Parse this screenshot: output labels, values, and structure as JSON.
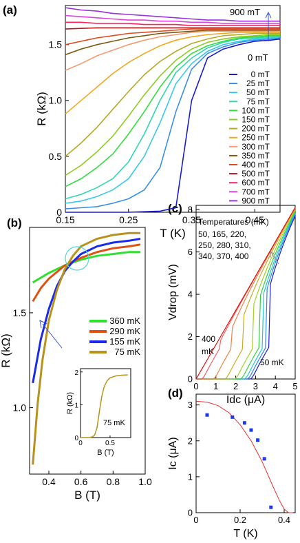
{
  "chart_data": [
    {
      "panel": "(a)",
      "type": "line",
      "xlabel": "T (K)",
      "ylabel": "R (kΩ)",
      "xlim": [
        0.15,
        0.49
      ],
      "ylim": [
        0,
        1.85
      ],
      "xticks": [
        0.15,
        0.25,
        0.35,
        0.45
      ],
      "yticks": [
        0,
        0.5,
        1.0,
        1.5
      ],
      "xtick_labels": [
        "0.15",
        "0.25",
        "0.35",
        "0.45"
      ],
      "ytick_labels": [
        "0",
        "0.5",
        "1.0",
        "1.5"
      ],
      "annotations": {
        "top": "900 mT",
        "bottom": "0 mT"
      },
      "legend_position": "right",
      "x": [
        0.15,
        0.175,
        0.2,
        0.225,
        0.25,
        0.275,
        0.3,
        0.325,
        0.35,
        0.375,
        0.4,
        0.425,
        0.45,
        0.475,
        0.49
      ],
      "series": [
        {
          "name": "0 mT",
          "color": "#1a1ad0",
          "values": [
            0.0,
            0.0,
            0.0,
            0.0,
            0.0,
            0.005,
            0.01,
            0.04,
            1.0,
            1.38,
            1.46,
            1.5,
            1.53,
            1.54,
            1.55
          ]
        },
        {
          "name": "25 mT",
          "color": "#3a8ee8",
          "values": [
            0.03,
            0.04,
            0.05,
            0.08,
            0.12,
            0.2,
            0.4,
            0.9,
            1.28,
            1.42,
            1.48,
            1.52,
            1.54,
            1.55,
            1.56
          ]
        },
        {
          "name": "50 mT",
          "color": "#35c8e8",
          "values": [
            0.08,
            0.1,
            0.14,
            0.2,
            0.3,
            0.5,
            0.8,
            1.15,
            1.33,
            1.44,
            1.5,
            1.53,
            1.55,
            1.56,
            1.57
          ]
        },
        {
          "name": "75 mT",
          "color": "#2fd6b0",
          "values": [
            0.12,
            0.16,
            0.22,
            0.3,
            0.45,
            0.7,
            1.0,
            1.25,
            1.38,
            1.47,
            1.52,
            1.55,
            1.56,
            1.57,
            1.57
          ]
        },
        {
          "name": "100 mT",
          "color": "#30dc40",
          "values": [
            0.23,
            0.3,
            0.4,
            0.52,
            0.7,
            0.9,
            1.12,
            1.3,
            1.42,
            1.49,
            1.53,
            1.56,
            1.57,
            1.58,
            1.58
          ]
        },
        {
          "name": "150 mT",
          "color": "#8ccc20",
          "values": [
            0.33,
            0.42,
            0.54,
            0.68,
            0.86,
            1.05,
            1.22,
            1.36,
            1.46,
            1.52,
            1.55,
            1.57,
            1.58,
            1.59,
            1.59
          ]
        },
        {
          "name": "200 mT",
          "color": "#b8a828",
          "values": [
            0.5,
            0.62,
            0.76,
            0.92,
            1.08,
            1.23,
            1.35,
            1.44,
            1.51,
            1.55,
            1.58,
            1.59,
            1.6,
            1.6,
            1.6
          ]
        },
        {
          "name": "250 mT",
          "color": "#f0a820",
          "values": [
            0.88,
            1.0,
            1.12,
            1.24,
            1.34,
            1.42,
            1.49,
            1.54,
            1.57,
            1.59,
            1.6,
            1.61,
            1.61,
            1.61,
            1.61
          ]
        },
        {
          "name": "300 mT",
          "color": "#f49a70",
          "values": [
            1.27,
            1.33,
            1.4,
            1.45,
            1.5,
            1.54,
            1.57,
            1.59,
            1.61,
            1.62,
            1.62,
            1.62,
            1.62,
            1.62,
            1.62
          ]
        },
        {
          "name": "350 mT",
          "color": "#7a5a10",
          "values": [
            1.41,
            1.46,
            1.5,
            1.53,
            1.56,
            1.58,
            1.6,
            1.61,
            1.62,
            1.63,
            1.63,
            1.63,
            1.63,
            1.63,
            1.63
          ]
        },
        {
          "name": "400 mT",
          "color": "#e04a20",
          "values": [
            1.5,
            1.53,
            1.56,
            1.58,
            1.6,
            1.61,
            1.62,
            1.63,
            1.64,
            1.64,
            1.64,
            1.64,
            1.64,
            1.64,
            1.64
          ]
        },
        {
          "name": "500 mT",
          "color": "#b01818",
          "values": [
            1.64,
            1.645,
            1.65,
            1.65,
            1.65,
            1.65,
            1.65,
            1.65,
            1.65,
            1.65,
            1.65,
            1.65,
            1.65,
            1.65,
            1.65
          ]
        },
        {
          "name": "600 mT",
          "color": "#ff2060",
          "values": [
            1.7,
            1.7,
            1.69,
            1.69,
            1.69,
            1.68,
            1.68,
            1.68,
            1.67,
            1.67,
            1.67,
            1.67,
            1.67,
            1.67,
            1.67
          ]
        },
        {
          "name": "700 mT",
          "color": "#e040e0",
          "values": [
            1.76,
            1.75,
            1.74,
            1.73,
            1.72,
            1.72,
            1.71,
            1.71,
            1.7,
            1.7,
            1.69,
            1.69,
            1.69,
            1.69,
            1.69
          ]
        },
        {
          "name": "900 mT",
          "color": "#9a30e0",
          "values": [
            1.83,
            1.81,
            1.8,
            1.78,
            1.77,
            1.76,
            1.75,
            1.74,
            1.73,
            1.72,
            1.72,
            1.71,
            1.71,
            1.71,
            1.71
          ]
        }
      ]
    },
    {
      "panel": "(b)",
      "type": "line",
      "xlabel": "B (T)",
      "ylabel": "R (kΩ)",
      "xlim": [
        0.28,
        1.0
      ],
      "ylim": [
        0.65,
        1.95
      ],
      "xticks": [
        0.4,
        0.6,
        0.8,
        1.0
      ],
      "yticks": [
        1.0,
        1.5
      ],
      "xtick_labels": [
        "0.4",
        "0.6",
        "0.8",
        "1.0"
      ],
      "ytick_labels": [
        "1.0",
        "1.5"
      ],
      "legend_position": "right",
      "series": [
        {
          "name": "360 mK",
          "color": "#30e030",
          "x": [
            0.3,
            0.4,
            0.5,
            0.6,
            0.7,
            0.8,
            0.9,
            0.97
          ],
          "values": [
            1.66,
            1.71,
            1.75,
            1.78,
            1.8,
            1.81,
            1.82,
            1.82
          ]
        },
        {
          "name": "290 mK",
          "color": "#e05010",
          "x": [
            0.3,
            0.35,
            0.4,
            0.5,
            0.6,
            0.7,
            0.8,
            0.9,
            0.97
          ],
          "values": [
            1.56,
            1.63,
            1.68,
            1.75,
            1.79,
            1.82,
            1.84,
            1.85,
            1.86
          ]
        },
        {
          "name": "155 mK",
          "color": "#1a2ae8",
          "x": [
            0.3,
            0.35,
            0.4,
            0.45,
            0.5,
            0.55,
            0.6,
            0.7,
            0.8,
            0.9,
            0.97
          ],
          "values": [
            1.13,
            1.36,
            1.52,
            1.64,
            1.72,
            1.77,
            1.81,
            1.85,
            1.87,
            1.88,
            1.89
          ]
        },
        {
          "name": "75 mK",
          "color": "#b8921a",
          "x": [
            0.3,
            0.33,
            0.36,
            0.4,
            0.45,
            0.5,
            0.55,
            0.6,
            0.7,
            0.8,
            0.9,
            0.97
          ],
          "values": [
            0.7,
            1.02,
            1.25,
            1.46,
            1.62,
            1.73,
            1.8,
            1.85,
            1.89,
            1.91,
            1.92,
            1.92
          ]
        }
      ],
      "inset": {
        "type": "line",
        "xlabel": "B (T)",
        "ylabel": "R (kΩ)",
        "xlim": [
          0,
          0.85
        ],
        "ylim": [
          0,
          2.1
        ],
        "xticks": [
          0,
          0.5
        ],
        "yticks": [
          0,
          1,
          2
        ],
        "xtick_labels": [
          "0",
          "0.5"
        ],
        "ytick_labels": [
          "0",
          "1",
          "2"
        ],
        "label": "75 mK",
        "series": [
          {
            "name": "75 mK",
            "color": "#b8921a",
            "x": [
              0.0,
              0.1,
              0.15,
              0.2,
              0.24,
              0.28,
              0.32,
              0.36,
              0.4,
              0.45,
              0.5,
              0.6,
              0.7,
              0.8
            ],
            "values": [
              0.0,
              0.0,
              0.0,
              0.02,
              0.08,
              0.3,
              0.8,
              1.25,
              1.55,
              1.73,
              1.82,
              1.88,
              1.9,
              1.91
            ]
          }
        ]
      }
    },
    {
      "panel": "(c)",
      "type": "line",
      "xlabel": "Idc (μA)",
      "ylabel": "Vdrop (mV)",
      "xlim": [
        0,
        5
      ],
      "ylim": [
        0,
        8.2
      ],
      "xticks": [
        0,
        1,
        2,
        3,
        4,
        5
      ],
      "yticks": [
        0,
        2,
        4,
        6,
        8
      ],
      "xtick_labels": [
        "0",
        "1",
        "2",
        "3",
        "4",
        "5"
      ],
      "ytick_labels": [
        "0",
        "2",
        "4",
        "6",
        "8"
      ],
      "annotations": {
        "temps_title": "Temperatures (mK)",
        "temps_line1": "50, 165, 220,",
        "temps_line2": "250, 280, 310,",
        "temps_line3": "340, 370, 400",
        "label_400a": "400",
        "label_400b": "mK",
        "label_50": "50 mK"
      },
      "series": [
        {
          "name": "50",
          "color": "#1a1ad0",
          "Ic": 2.8
        },
        {
          "name": "165",
          "color": "#2a80ff",
          "Ic": 2.65
        },
        {
          "name": "220",
          "color": "#20c8c8",
          "Ic": 2.5
        },
        {
          "name": "250",
          "color": "#30d040",
          "Ic": 2.3
        },
        {
          "name": "280",
          "color": "#a0d020",
          "Ic": 2.0
        },
        {
          "name": "310",
          "color": "#d0a820",
          "Ic": 1.5
        },
        {
          "name": "340",
          "color": "#f08040",
          "Ic": 0.9
        },
        {
          "name": "370",
          "color": "#f06060",
          "Ic": 0.3
        },
        {
          "name": "400",
          "color": "#e01010",
          "Ic": 0.0
        }
      ]
    },
    {
      "panel": "(d)",
      "type": "scatter",
      "xlabel": "T (K)",
      "ylabel": "Ic (μA)",
      "xlim": [
        0,
        0.45
      ],
      "ylim": [
        0,
        3.3
      ],
      "xticks": [
        0,
        0.2,
        0.4
      ],
      "yticks": [
        0,
        1,
        2,
        3
      ],
      "xtick_labels": [
        "0",
        "0.2",
        "0.4"
      ],
      "ytick_labels": [
        "0",
        "1",
        "2",
        "3"
      ],
      "x": [
        0.05,
        0.165,
        0.22,
        0.25,
        0.28,
        0.31,
        0.34
      ],
      "values": [
        2.72,
        2.66,
        2.5,
        2.3,
        2.02,
        1.5,
        0.15
      ],
      "marker_color": "#1a3aee",
      "fit": {
        "color": "#e83030",
        "x": [
          0.0,
          0.05,
          0.1,
          0.15,
          0.2,
          0.25,
          0.3,
          0.35,
          0.38,
          0.4,
          0.42,
          0.44
        ],
        "values": [
          3.1,
          3.08,
          2.98,
          2.78,
          2.45,
          2.0,
          1.42,
          0.72,
          0.32,
          0.1,
          0.0,
          0.0
        ]
      }
    }
  ],
  "panel_labels": {
    "a": "(a)",
    "b": "(b)",
    "c": "(c)",
    "d": "(d)"
  }
}
